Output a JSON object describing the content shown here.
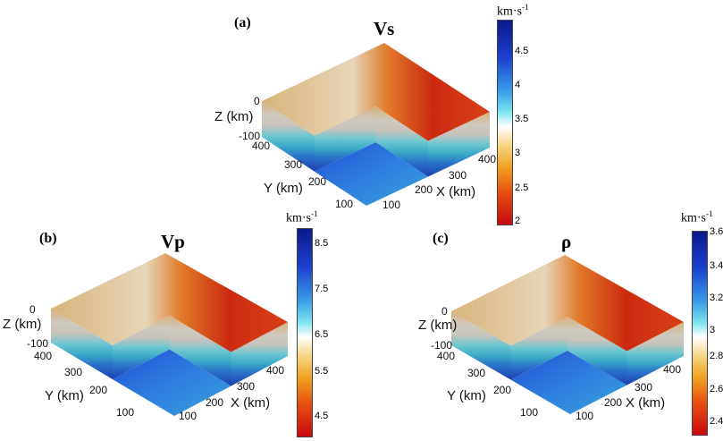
{
  "chart_data": [
    {
      "type": "3d-volume",
      "panel_label": "(a)",
      "title": "Vs",
      "colorbar": {
        "unit": "km·s",
        "unit_exp": "-1",
        "ticks": [
          "4.5",
          "4",
          "3.5",
          "3",
          "2.5",
          "2"
        ],
        "range": [
          1.95,
          4.9
        ],
        "colormap": [
          "#0a1a8a",
          "#1b3fd0",
          "#7fe6f0",
          "#ffffff",
          "#f0a020",
          "#c80a10"
        ]
      },
      "z_axis": {
        "label": "Z (km)",
        "ticks": [
          "0",
          "-100"
        ]
      },
      "y_axis": {
        "label": "Y (km)",
        "ticks": [
          "400",
          "300",
          "200",
          "100"
        ]
      },
      "x_axis": {
        "label": "X (km)",
        "ticks": [
          "100",
          "200",
          "300",
          "400"
        ]
      }
    },
    {
      "type": "3d-volume",
      "panel_label": "(b)",
      "title": "Vp",
      "colorbar": {
        "unit": "km·s",
        "unit_exp": "-1",
        "ticks": [
          "8.5",
          "7.5",
          "6.5",
          "5.5",
          "4.5"
        ],
        "range": [
          4.1,
          8.9
        ],
        "colormap": [
          "#0a1a8a",
          "#1b3fd0",
          "#7fe6f0",
          "#ffffff",
          "#f0a020",
          "#c80a10"
        ]
      },
      "z_axis": {
        "label": "Z (km)",
        "ticks": [
          "0",
          "-100"
        ]
      },
      "y_axis": {
        "label": "Y (km)",
        "ticks": [
          "400",
          "300",
          "200",
          "100"
        ]
      },
      "x_axis": {
        "label": "X (km)",
        "ticks": [
          "100",
          "200",
          "300",
          "400"
        ]
      }
    },
    {
      "type": "3d-volume",
      "panel_label": "(c)",
      "title": "ρ",
      "colorbar": {
        "unit": "km·s",
        "unit_exp": "-1",
        "ticks": [
          "3.6",
          "3.4",
          "3.2",
          "3",
          "2.8",
          "2.6",
          "2.4"
        ],
        "range": [
          2.32,
          3.6
        ],
        "colormap": [
          "#0a1a8a",
          "#1b3fd0",
          "#7fe6f0",
          "#ffffff",
          "#f0a020",
          "#c80a10"
        ]
      },
      "z_axis": {
        "label": "Z (km)",
        "ticks": [
          "0",
          "-100"
        ]
      },
      "y_axis": {
        "label": "Y (km)",
        "ticks": [
          "400",
          "300",
          "200",
          "100"
        ]
      },
      "x_axis": {
        "label": "X (km)",
        "ticks": [
          "100",
          "200",
          "300",
          "400"
        ]
      }
    }
  ]
}
